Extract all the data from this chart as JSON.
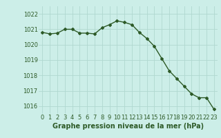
{
  "x": [
    0,
    1,
    2,
    3,
    4,
    5,
    6,
    7,
    8,
    9,
    10,
    11,
    12,
    13,
    14,
    15,
    16,
    17,
    18,
    19,
    20,
    21,
    22,
    23
  ],
  "y": [
    1020.8,
    1020.7,
    1020.75,
    1021.0,
    1021.0,
    1020.75,
    1020.75,
    1020.7,
    1021.1,
    1021.3,
    1021.55,
    1021.45,
    1021.3,
    1020.8,
    1020.4,
    1019.9,
    1019.1,
    1018.3,
    1017.8,
    1017.3,
    1016.8,
    1016.55,
    1016.55,
    1015.8
  ],
  "ylim": [
    1015.5,
    1022.5
  ],
  "yticks": [
    1016,
    1017,
    1018,
    1019,
    1020,
    1021,
    1022
  ],
  "xticks": [
    0,
    1,
    2,
    3,
    4,
    5,
    6,
    7,
    8,
    9,
    10,
    11,
    12,
    13,
    14,
    15,
    16,
    17,
    18,
    19,
    20,
    21,
    22,
    23
  ],
  "xlabel": "Graphe pression niveau de la mer (hPa)",
  "line_color": "#2d5a27",
  "marker": "D",
  "marker_size": 2.0,
  "bg_color": "#cceee8",
  "grid_color": "#b0d8d0",
  "tick_label_fontsize": 6.0,
  "xlabel_fontsize": 7.0,
  "xlabel_fontweight": "bold",
  "line_width": 1.0
}
